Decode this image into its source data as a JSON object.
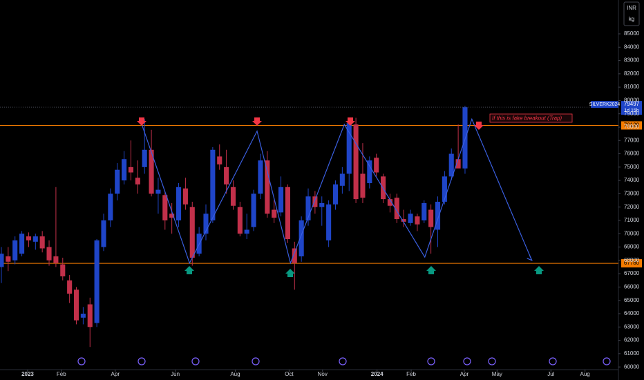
{
  "chart_data": {
    "type": "candlestick",
    "symbol": "SILVERK2024",
    "currency": "INR",
    "unit": "kg",
    "countdown": "1d 15h",
    "annotation": "If this is fake breakout (Trap)",
    "up_color": "#1f45c8",
    "down_color": "#c2304a",
    "open": [
      67500,
      68300,
      68000,
      68500,
      69800,
      69400,
      69800,
      69000,
      68300,
      67700,
      66500,
      65800,
      63700,
      64700,
      63300,
      69000,
      71000,
      73000,
      74000,
      75000,
      74200,
      75000,
      76300,
      73000,
      72900,
      71500,
      71000,
      73400,
      72000,
      68500,
      70000,
      71000,
      75800,
      75000,
      73500,
      72000,
      70000,
      70500,
      73000,
      75500,
      71800,
      71600,
      73500,
      68900,
      68300,
      71000,
      72800,
      72000,
      69500,
      72200,
      73600,
      74500,
      78200,
      74500,
      73800,
      75700,
      74300,
      72600,
      72700,
      71100,
      70800,
      71300,
      71000,
      71800,
      70300,
      72400,
      74300,
      75600,
      74900
    ],
    "high": [
      69000,
      69000,
      69800,
      70200,
      70100,
      70000,
      70200,
      69500,
      73500,
      68200,
      66900,
      66000,
      64500,
      65200,
      69600,
      71500,
      73400,
      75300,
      76200,
      77000,
      75500,
      78600,
      77800,
      74200,
      73100,
      72300,
      73800,
      74200,
      72400,
      70500,
      72200,
      76500,
      76700,
      76300,
      74000,
      72400,
      71500,
      73300,
      76000,
      76200,
      72500,
      74300,
      73700,
      69400,
      71300,
      73400,
      73200,
      72800,
      72500,
      74000,
      75000,
      78500,
      78700,
      76800,
      75800,
      76000,
      74500,
      73000,
      73000,
      71800,
      71800,
      71500,
      72500,
      72200,
      72800,
      74700,
      76400,
      78200,
      79600
    ],
    "low": [
      66300,
      67200,
      67700,
      68300,
      69000,
      68800,
      68600,
      67600,
      67500,
      66500,
      64800,
      63200,
      63200,
      61500,
      63000,
      68700,
      70500,
      72500,
      73700,
      74000,
      73000,
      74500,
      72800,
      71500,
      70300,
      70000,
      70500,
      71800,
      67600,
      68300,
      69500,
      70800,
      74800,
      73000,
      71800,
      69800,
      69600,
      70200,
      72600,
      71200,
      70800,
      71300,
      69300,
      65800,
      67900,
      70600,
      71500,
      70600,
      69000,
      71800,
      73000,
      73200,
      72300,
      72300,
      73400,
      74300,
      72300,
      71600,
      70800,
      70500,
      70600,
      70200,
      70800,
      68500,
      69000,
      72200,
      74000,
      75000,
      74500
    ],
    "close": [
      68500,
      67900,
      69500,
      70000,
      69500,
      69800,
      68900,
      68000,
      67800,
      66800,
      65500,
      63500,
      64000,
      63000,
      69500,
      71000,
      73000,
      74800,
      75600,
      74600,
      73700,
      76300,
      73000,
      73300,
      71000,
      71200,
      73500,
      72200,
      68200,
      70000,
      71500,
      76300,
      75200,
      73700,
      72100,
      70000,
      70300,
      73000,
      75500,
      71500,
      71200,
      73500,
      69600,
      67800,
      71000,
      72800,
      72000,
      72300,
      72200,
      73700,
      74500,
      78300,
      72600,
      72700,
      75500,
      74600,
      72600,
      72100,
      71100,
      70900,
      71500,
      70700,
      72300,
      70500,
      72400,
      74300,
      76000,
      74900,
      79497
    ],
    "xlim": [
      -0.2,
      90.5
    ],
    "xticks": [
      {
        "value": 3.85,
        "label": "2023"
      },
      {
        "value": 8.8,
        "label": "Feb"
      },
      {
        "value": 16.7,
        "label": "Apr"
      },
      {
        "value": 25.5,
        "label": "Jun"
      },
      {
        "value": 34.3,
        "label": "Aug"
      },
      {
        "value": 42.2,
        "label": "Oct"
      },
      {
        "value": 47.1,
        "label": "Nov"
      },
      {
        "value": 55.1,
        "label": "2024"
      },
      {
        "value": 60.1,
        "label": "Feb"
      },
      {
        "value": 67.9,
        "label": "Apr"
      },
      {
        "value": 72.7,
        "label": "May"
      },
      {
        "value": 80.6,
        "label": "Jul"
      },
      {
        "value": 85.6,
        "label": "Aug"
      }
    ],
    "ylim": [
      59800,
      87540
    ],
    "yticks": [
      60000,
      61000,
      62000,
      63000,
      64000,
      65000,
      66000,
      67000,
      68000,
      69000,
      70000,
      71000,
      72000,
      73000,
      74000,
      75000,
      76000,
      77000,
      78000,
      79000,
      80000,
      81000,
      82000,
      83000,
      84000,
      85000
    ],
    "levels": [
      {
        "value": 78129,
        "color": "#f57c00"
      },
      {
        "value": 67780,
        "color": "#f57c00"
      }
    ],
    "zigzag": {
      "x": [
        20.6,
        27.6,
        37.5,
        42.4,
        50.3,
        62.1,
        69.0,
        77.8
      ],
      "y": [
        78200,
        67800,
        77700,
        67800,
        78200,
        68250,
        78600,
        68000
      ],
      "color": "#3a5fe0"
    },
    "grid": false
  }
}
